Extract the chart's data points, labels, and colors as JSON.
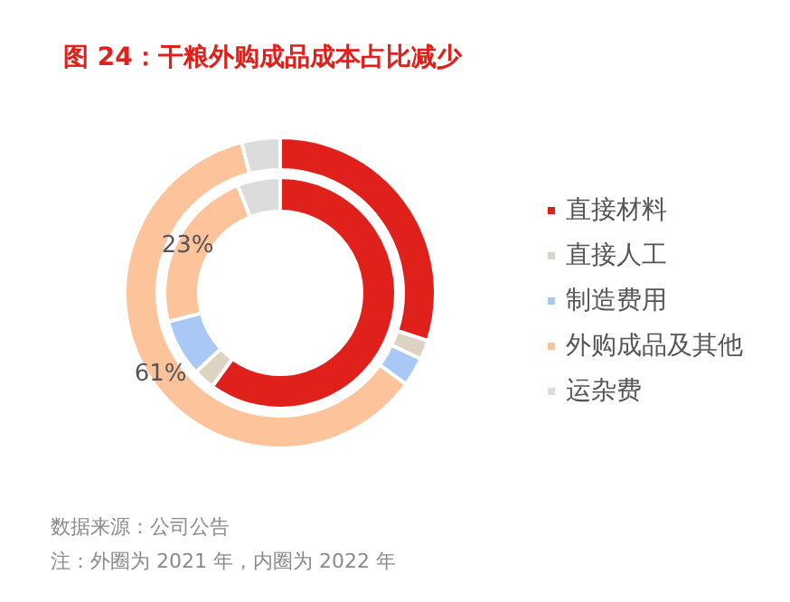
{
  "chart_data": {
    "type": "donut",
    "title": "图 24：干粮外购成品成本占比减少",
    "categories": [
      "直接材料",
      "直接人工",
      "制造费用",
      "外购成品及其他",
      "运杂费"
    ],
    "colors": [
      "#e0201b",
      "#ddd3c3",
      "#a9c8f5",
      "#fdc49b",
      "#dcdcdc"
    ],
    "series": [
      {
        "values": [
          30,
          2,
          3,
          61,
          4
        ],
        "value_labels": [
          null,
          null,
          null,
          "61%",
          null
        ]
      },
      {
        "values": [
          60,
          3,
          8,
          23,
          6
        ],
        "value_labels": [
          null,
          null,
          null,
          "23%",
          null
        ]
      }
    ],
    "legend": "right",
    "annotations": [
      "数据来源：公司公告",
      "注：外圈为 2021 年，内圈为 2022 年"
    ]
  }
}
